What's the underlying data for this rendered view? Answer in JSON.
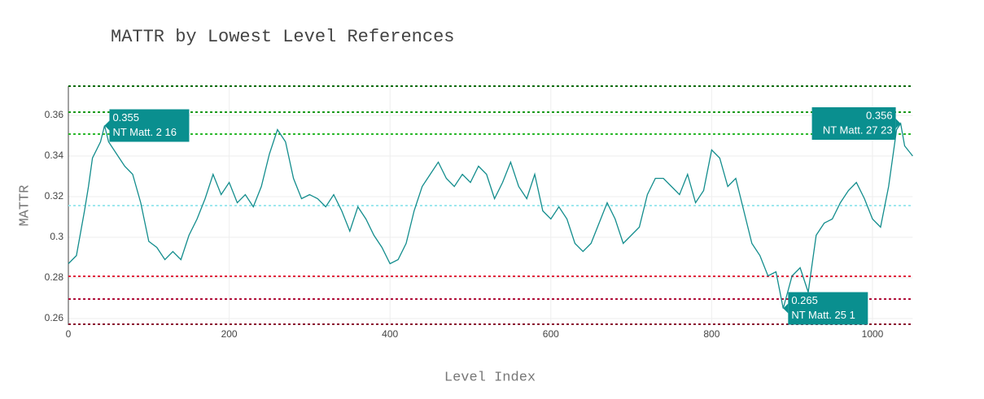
{
  "chart_data": {
    "type": "line",
    "title": "MATTR by Lowest Level References",
    "x_label": "Level Index",
    "y_label": "MATTR",
    "x": [
      0,
      10,
      20,
      25,
      30,
      40,
      45,
      50,
      60,
      70,
      80,
      90,
      100,
      110,
      120,
      130,
      140,
      150,
      160,
      170,
      180,
      190,
      200,
      210,
      220,
      230,
      240,
      250,
      260,
      270,
      280,
      290,
      300,
      310,
      320,
      330,
      340,
      350,
      360,
      370,
      380,
      390,
      400,
      410,
      420,
      430,
      440,
      450,
      460,
      470,
      480,
      490,
      500,
      510,
      520,
      530,
      540,
      550,
      560,
      570,
      580,
      590,
      600,
      610,
      620,
      630,
      640,
      650,
      660,
      670,
      680,
      690,
      700,
      710,
      720,
      730,
      740,
      750,
      760,
      770,
      780,
      790,
      800,
      810,
      820,
      830,
      840,
      850,
      860,
      870,
      880,
      889,
      900,
      910,
      920,
      930,
      940,
      950,
      960,
      970,
      980,
      990,
      1000,
      1010,
      1020,
      1030,
      1035,
      1040,
      1050
    ],
    "series": [
      {
        "name": "MATTR",
        "color": "#138d8d",
        "values": [
          0.287,
          0.291,
          0.313,
          0.325,
          0.339,
          0.347,
          0.355,
          0.347,
          0.341,
          0.335,
          0.331,
          0.317,
          0.298,
          0.295,
          0.289,
          0.293,
          0.289,
          0.301,
          0.309,
          0.319,
          0.331,
          0.321,
          0.327,
          0.317,
          0.321,
          0.315,
          0.325,
          0.341,
          0.353,
          0.347,
          0.329,
          0.319,
          0.321,
          0.319,
          0.315,
          0.321,
          0.313,
          0.303,
          0.315,
          0.309,
          0.301,
          0.295,
          0.287,
          0.289,
          0.297,
          0.313,
          0.325,
          0.331,
          0.337,
          0.329,
          0.325,
          0.331,
          0.327,
          0.335,
          0.331,
          0.319,
          0.327,
          0.337,
          0.325,
          0.319,
          0.331,
          0.313,
          0.309,
          0.315,
          0.309,
          0.297,
          0.293,
          0.297,
          0.307,
          0.317,
          0.309,
          0.297,
          0.301,
          0.305,
          0.321,
          0.329,
          0.329,
          0.325,
          0.321,
          0.331,
          0.317,
          0.323,
          0.343,
          0.339,
          0.325,
          0.329,
          0.313,
          0.297,
          0.291,
          0.281,
          0.283,
          0.265,
          0.281,
          0.285,
          0.273,
          0.301,
          0.307,
          0.309,
          0.317,
          0.323,
          0.327,
          0.319,
          0.309,
          0.305,
          0.325,
          0.353,
          0.356,
          0.345,
          0.34
        ]
      }
    ],
    "xlim": [
      0,
      1050
    ],
    "xticks": [
      0,
      200,
      400,
      600,
      800,
      1000
    ],
    "ylim": [
      0.2568,
      0.3744
    ],
    "yticks": [
      0.26,
      0.28,
      0.3,
      0.32,
      0.34,
      0.36
    ],
    "grid": true,
    "reference_lines": [
      {
        "value": 0.3744,
        "color": "#0b6b0b"
      },
      {
        "value": 0.3616,
        "color": "#1a9a1a"
      },
      {
        "value": 0.3508,
        "color": "#2cb82c"
      },
      {
        "value": 0.3156,
        "color": "#9ee8ee"
      },
      {
        "value": 0.2808,
        "color": "#e0203c"
      },
      {
        "value": 0.2696,
        "color": "#b0103a"
      },
      {
        "value": 0.2572,
        "color": "#8a1030"
      }
    ],
    "annotations": [
      {
        "x": 45,
        "y": 0.355,
        "value_label": "0.355",
        "text": "NT Matt. 2 16"
      },
      {
        "x": 1035,
        "y": 0.356,
        "value_label": "0.356",
        "text": "NT Matt. 27 23"
      },
      {
        "x": 889,
        "y": 0.265,
        "value_label": "0.265",
        "text": "NT Matt. 25 1"
      }
    ],
    "annotation_color": "#0a8f8f"
  }
}
